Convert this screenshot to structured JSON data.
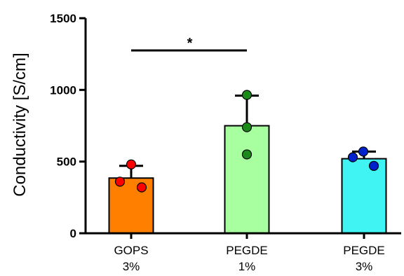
{
  "chart_data": {
    "type": "bar",
    "ylabel": "Conductivity [S/cm]",
    "ylim": [
      0,
      1500
    ],
    "yticks": [
      0,
      500,
      1000,
      1500
    ],
    "grid": false,
    "categories": [
      {
        "line1": "GOPS",
        "line2": "3%"
      },
      {
        "line1": "PEGDE",
        "line2": "1%"
      },
      {
        "line1": "PEGDE",
        "line2": "3%"
      }
    ],
    "values": [
      385,
      750,
      520
    ],
    "error_upper": [
      470,
      960,
      570
    ],
    "bar_colors": [
      "#ff8000",
      "#a8ffa0",
      "#40f4f4"
    ],
    "point_colors": [
      "#ff0000",
      "#1a8a1a",
      "#0022cc"
    ],
    "points": [
      [
        480,
        360,
        320
      ],
      [
        965,
        740,
        550
      ],
      [
        570,
        530,
        470
      ]
    ],
    "significance": {
      "from": 0,
      "to": 1,
      "label": "*",
      "y": 1275
    }
  }
}
